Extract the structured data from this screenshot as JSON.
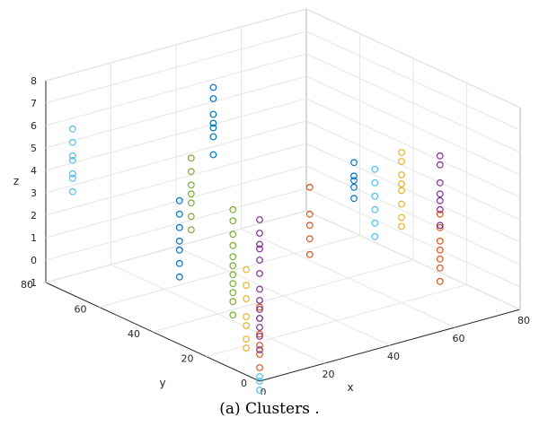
{
  "chart_data": {
    "type": "scatter3d",
    "xlabel": "x",
    "ylabel": "y",
    "zlabel": "z",
    "xlim": [
      0,
      80
    ],
    "ylim": [
      0,
      80
    ],
    "zlim": [
      -1,
      8
    ],
    "x_ticks": [
      "0",
      "20",
      "40",
      "60",
      "80"
    ],
    "y_ticks": [
      "0",
      "20",
      "40",
      "60",
      "80"
    ],
    "z_ticks": [
      "-1",
      "0",
      "1",
      "2",
      "3",
      "4",
      "5",
      "6",
      "7",
      "8"
    ],
    "grid": true,
    "marker": "open-circle",
    "series": [
      {
        "color": "#0072BD",
        "points": [
          [
            0,
            30,
            2
          ],
          [
            0,
            30,
            2.6
          ],
          [
            0,
            30,
            3.2
          ],
          [
            0,
            30,
            3.6
          ],
          [
            0,
            30,
            4.2
          ],
          [
            0,
            30,
            4.8
          ],
          [
            0,
            30,
            5.4
          ],
          [
            35,
            60,
            4.4
          ],
          [
            35,
            60,
            5.2
          ],
          [
            35,
            60,
            5.6
          ],
          [
            35,
            60,
            5.8
          ],
          [
            35,
            60,
            6.2
          ],
          [
            35,
            60,
            6.9
          ],
          [
            35,
            60,
            7.4
          ],
          [
            70,
            50,
            1.6
          ],
          [
            70,
            50,
            2.1
          ],
          [
            70,
            50,
            2.4
          ],
          [
            70,
            50,
            2.6
          ],
          [
            70,
            50,
            3.2
          ]
        ]
      },
      {
        "color": "#D95319",
        "points": [
          [
            0,
            0,
            -0.4
          ],
          [
            0,
            0,
            0.2
          ],
          [
            0,
            0,
            0.6
          ],
          [
            0,
            0,
            1.1
          ],
          [
            0,
            0,
            1.8
          ],
          [
            0,
            0,
            2.3
          ],
          [
            40,
            30,
            1.4
          ],
          [
            40,
            30,
            2.1
          ],
          [
            40,
            30,
            2.7
          ],
          [
            40,
            30,
            3.2
          ],
          [
            40,
            30,
            4.4
          ],
          [
            80,
            30,
            -1.4
          ],
          [
            80,
            30,
            -0.8
          ],
          [
            80,
            30,
            -0.4
          ],
          [
            80,
            30,
            0.0
          ],
          [
            80,
            30,
            0.4
          ],
          [
            80,
            30,
            1.0
          ],
          [
            80,
            30,
            1.6
          ]
        ]
      },
      {
        "color": "#EDB120",
        "points": [
          [
            0,
            5,
            0.2
          ],
          [
            0,
            5,
            0.6
          ],
          [
            0,
            5,
            1.2
          ],
          [
            0,
            5,
            1.6
          ],
          [
            0,
            5,
            2.4
          ],
          [
            0,
            5,
            3.0
          ],
          [
            0,
            5,
            3.7
          ],
          [
            60,
            20,
            2.4
          ],
          [
            60,
            20,
            2.8
          ],
          [
            60,
            20,
            3.4
          ],
          [
            60,
            20,
            4.0
          ],
          [
            60,
            20,
            4.3
          ],
          [
            60,
            20,
            4.7
          ],
          [
            60,
            20,
            5.3
          ],
          [
            60,
            20,
            5.7
          ]
        ]
      },
      {
        "color": "#7E2F8E",
        "points": [
          [
            0,
            0,
            1.0
          ],
          [
            0,
            0,
            1.4
          ],
          [
            0,
            0,
            1.8
          ],
          [
            0,
            0,
            2.2
          ],
          [
            0,
            0,
            2.6
          ],
          [
            0,
            0,
            3.1
          ],
          [
            0,
            0,
            3.8
          ],
          [
            0,
            0,
            4.4
          ],
          [
            0,
            0,
            4.9
          ],
          [
            0,
            0,
            5.1
          ],
          [
            0,
            0,
            5.6
          ],
          [
            0,
            0,
            6.2
          ],
          [
            0,
            0,
            0.4
          ],
          [
            80,
            30,
            1.1
          ],
          [
            80,
            30,
            1.8
          ],
          [
            80,
            30,
            2.2
          ],
          [
            80,
            30,
            2.5
          ],
          [
            80,
            30,
            3.0
          ],
          [
            80,
            30,
            3.8
          ],
          [
            80,
            30,
            4.2
          ]
        ]
      },
      {
        "color": "#77AC30",
        "points": [
          [
            0,
            10,
            1.4
          ],
          [
            0,
            10,
            2.0
          ],
          [
            0,
            10,
            2.4
          ],
          [
            0,
            10,
            2.8
          ],
          [
            0,
            10,
            3.2
          ],
          [
            0,
            10,
            3.6
          ],
          [
            0,
            10,
            4.0
          ],
          [
            0,
            10,
            4.5
          ],
          [
            0,
            10,
            5.0
          ],
          [
            0,
            10,
            5.6
          ],
          [
            0,
            10,
            6.1
          ],
          [
            20,
            50,
            2.2
          ],
          [
            20,
            50,
            2.8
          ],
          [
            20,
            50,
            3.4
          ],
          [
            20,
            50,
            3.8
          ],
          [
            20,
            50,
            4.2
          ],
          [
            20,
            50,
            4.8
          ],
          [
            20,
            50,
            5.4
          ]
        ]
      },
      {
        "color": "#4DBEEE",
        "points": [
          [
            0,
            70,
            4.4
          ],
          [
            0,
            70,
            3.6
          ],
          [
            0,
            70,
            4.2
          ],
          [
            0,
            70,
            5.0
          ],
          [
            0,
            70,
            5.2
          ],
          [
            0,
            70,
            5.8
          ],
          [
            0,
            70,
            6.4
          ],
          [
            0,
            0,
            -1.4
          ],
          [
            0,
            0,
            -1.0
          ],
          [
            0,
            0,
            -0.8
          ],
          [
            0,
            0,
            -2.0
          ],
          [
            0,
            0,
            -2.6
          ],
          [
            60,
            30,
            1.4
          ],
          [
            60,
            30,
            2.0
          ],
          [
            60,
            30,
            2.6
          ],
          [
            60,
            30,
            3.2
          ],
          [
            60,
            30,
            3.8
          ],
          [
            60,
            30,
            4.4
          ]
        ]
      }
    ]
  },
  "caption": "(a) Clusters ."
}
